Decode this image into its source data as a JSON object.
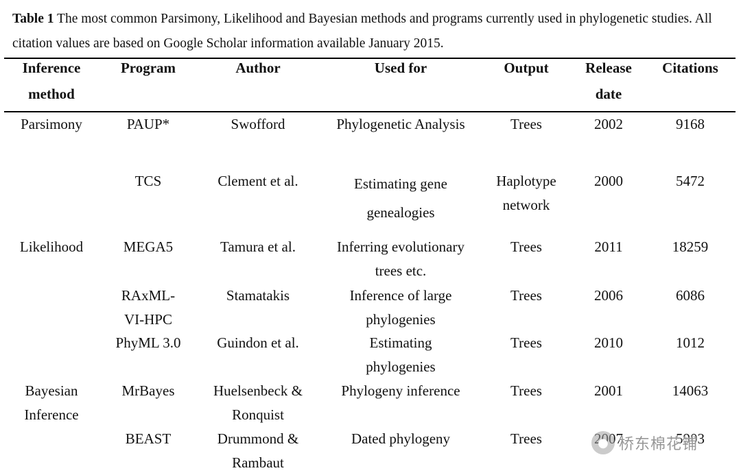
{
  "caption": {
    "label": "Table 1",
    "text": " The most common Parsimony, Likelihood and Bayesian methods and programs currently used in phylogenetic studies. All citation values are based on Google Scholar information available January 2015."
  },
  "headers": {
    "method": [
      "Inference",
      "method"
    ],
    "program": [
      "Program"
    ],
    "author": [
      "Author"
    ],
    "used_for": [
      "Used for"
    ],
    "output": [
      "Output"
    ],
    "release": [
      "Release",
      "date"
    ],
    "citations": [
      "Citations"
    ]
  },
  "rows": [
    {
      "method": [
        "Parsimony"
      ],
      "program": [
        "PAUP*"
      ],
      "author": [
        "Swofford"
      ],
      "used_for": [
        "Phylogenetic Analysis"
      ],
      "output": [
        "Trees"
      ],
      "release": [
        "2002"
      ],
      "citations": [
        "9168"
      ]
    },
    {
      "method": [],
      "program": [
        "TCS"
      ],
      "author": [
        "Clement et al."
      ],
      "used_for": [
        "Estimating gene",
        "genealogies"
      ],
      "output": [
        "Haplotype",
        "network"
      ],
      "release": [
        "2000"
      ],
      "citations": [
        "5472"
      ]
    },
    {
      "method": [
        "Likelihood"
      ],
      "program": [
        "MEGA5"
      ],
      "author": [
        "Tamura et al."
      ],
      "used_for": [
        "Inferring evolutionary",
        "trees etc."
      ],
      "output": [
        "Trees"
      ],
      "release": [
        "2011"
      ],
      "citations": [
        "18259"
      ]
    },
    {
      "method": [],
      "program": [
        "RAxML-",
        "VI-HPC"
      ],
      "author": [
        "Stamatakis"
      ],
      "used_for": [
        "Inference of large",
        "phylogenies"
      ],
      "output": [
        "Trees"
      ],
      "release": [
        "2006"
      ],
      "citations": [
        "6086"
      ]
    },
    {
      "method": [],
      "program": [
        "PhyML 3.0"
      ],
      "author": [
        "Guindon et al."
      ],
      "used_for": [
        "Estimating",
        "phylogenies"
      ],
      "output": [
        "Trees"
      ],
      "release": [
        "2010"
      ],
      "citations": [
        "1012"
      ]
    },
    {
      "method": [
        "Bayesian",
        "Inference"
      ],
      "program": [
        "MrBayes"
      ],
      "author": [
        "Huelsenbeck &",
        "Ronquist"
      ],
      "used_for": [
        "Phylogeny inference"
      ],
      "output": [
        "Trees"
      ],
      "release": [
        "2001"
      ],
      "citations": [
        "14063"
      ]
    },
    {
      "method": [],
      "program": [
        "BEAST"
      ],
      "author": [
        "Drummond &",
        "Rambaut"
      ],
      "used_for": [
        "Dated phylogeny"
      ],
      "output": [
        "Trees"
      ],
      "release": [
        "2007"
      ],
      "citations": [
        "5903"
      ]
    }
  ],
  "watermark": {
    "text": "桥东棉花铺",
    "icon": "wechat-logo-icon"
  }
}
